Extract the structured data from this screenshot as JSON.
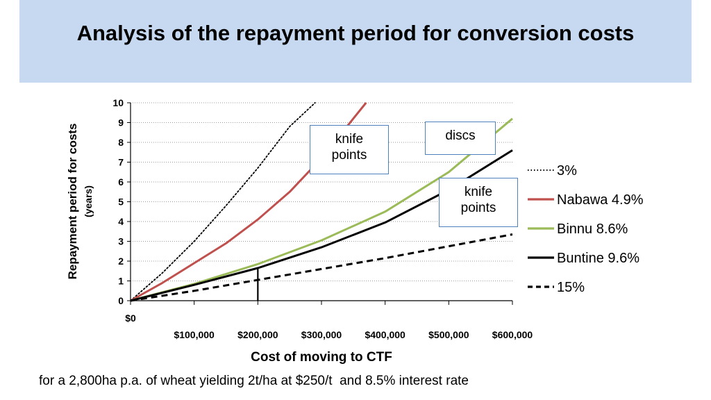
{
  "slide": {
    "title": "Analysis of the repayment period for conversion costs",
    "footnote": "for a 2,800ha p.a. of wheat yielding 2t/ha at $250/t  and 8.5% interest rate"
  },
  "callouts": [
    {
      "text": "knife\npoints"
    },
    {
      "text": "discs"
    },
    {
      "text": "knife\npoints"
    }
  ],
  "chart_data": {
    "type": "line",
    "xlabel": "Cost of moving to CTF",
    "ylabel": "Repayment  period for costs",
    "ylabel_sub": "(years)",
    "xlim": [
      0,
      600000
    ],
    "ylim": [
      0,
      10
    ],
    "x_ticks": [
      0,
      100000,
      200000,
      300000,
      400000,
      500000,
      600000
    ],
    "x_tick_labels": [
      "$0",
      "$100,000",
      "$200,000",
      "$300,000",
      "$400,000",
      "$500,000",
      "$600,000"
    ],
    "y_ticks": [
      0,
      1,
      2,
      3,
      4,
      5,
      6,
      7,
      8,
      9,
      10
    ],
    "y_tick_labels": [
      "0",
      "1",
      "2",
      "3",
      "4",
      "5",
      "6",
      "7",
      "8",
      "9",
      "10"
    ],
    "grid": "horizontal dotted",
    "legend_position": "right",
    "reference_line": {
      "x": 200000,
      "y_from": 0,
      "y_to": 1.65
    },
    "series": [
      {
        "name": "3%",
        "color": "#000000",
        "style": "dotted",
        "x": [
          0,
          50000,
          100000,
          150000,
          200000,
          250000,
          290000
        ],
        "y": [
          0,
          1.4,
          3.0,
          4.8,
          6.7,
          8.8,
          10
        ]
      },
      {
        "name": "Nabawa 4.9%",
        "color": "#c0504d",
        "style": "solid",
        "x": [
          0,
          50000,
          100000,
          150000,
          200000,
          250000,
          300000,
          350000,
          370000
        ],
        "y": [
          0,
          0.9,
          1.9,
          2.9,
          4.1,
          5.5,
          7.2,
          9.2,
          10
        ]
      },
      {
        "name": "Binnu 8.6%",
        "color": "#9bbb59",
        "style": "solid",
        "x": [
          0,
          100000,
          200000,
          300000,
          400000,
          500000,
          600000
        ],
        "y": [
          0,
          0.85,
          1.85,
          3.05,
          4.5,
          6.5,
          9.2
        ]
      },
      {
        "name": "Buntine 9.6%",
        "color": "#000000",
        "style": "solid",
        "x": [
          0,
          100000,
          200000,
          300000,
          400000,
          500000,
          600000
        ],
        "y": [
          0,
          0.8,
          1.65,
          2.7,
          3.95,
          5.6,
          7.6
        ]
      },
      {
        "name": "15%",
        "color": "#000000",
        "style": "dashed",
        "x": [
          0,
          100000,
          200000,
          300000,
          400000,
          500000,
          600000
        ],
        "y": [
          0,
          0.5,
          1.05,
          1.6,
          2.15,
          2.75,
          3.35
        ]
      }
    ]
  }
}
